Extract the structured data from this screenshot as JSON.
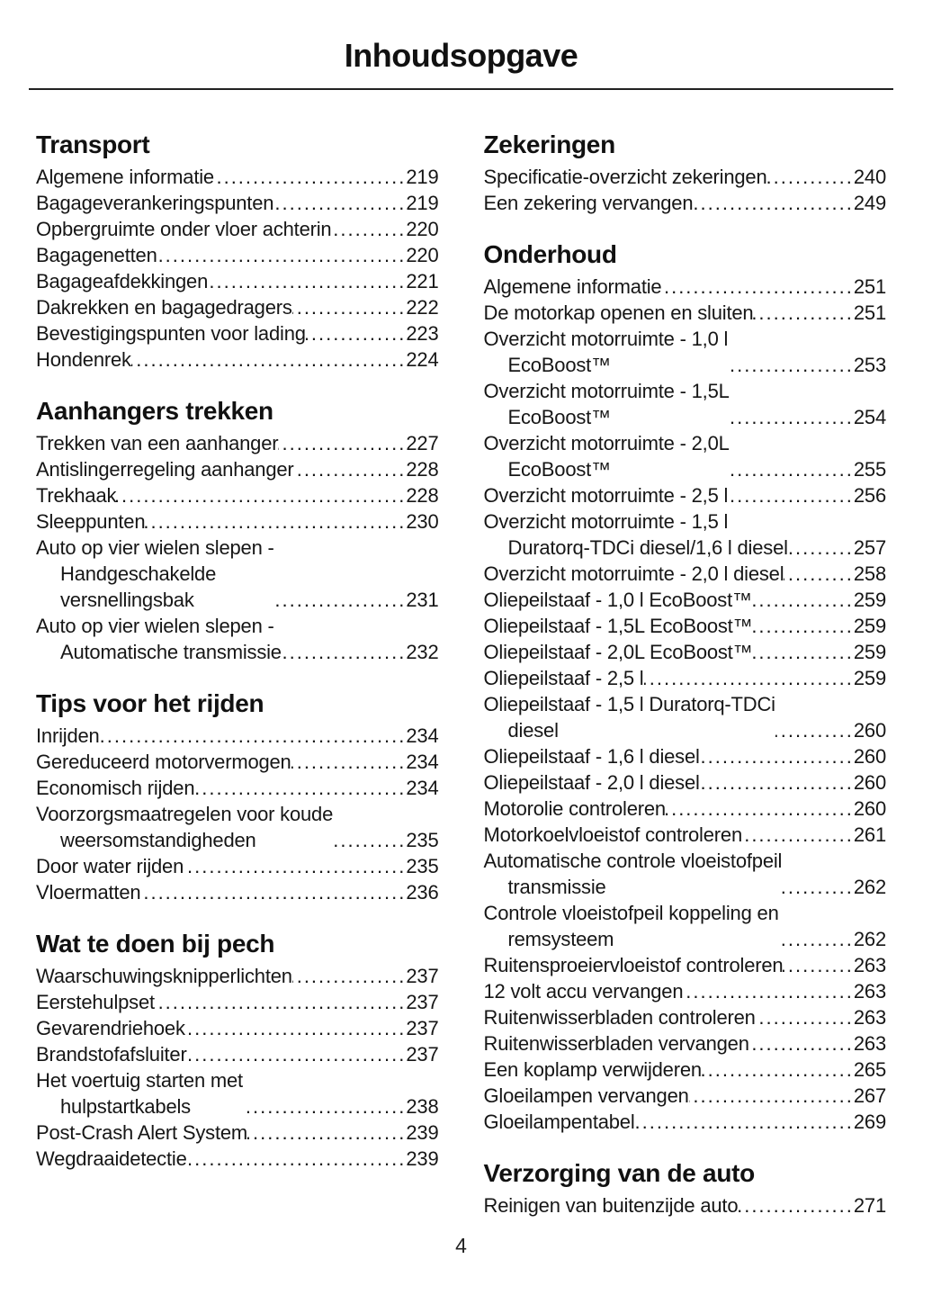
{
  "page": {
    "title": "Inhoudsopgave",
    "page_number": "4"
  },
  "toc": {
    "columns": [
      {
        "sections": [
          {
            "heading": "Transport",
            "entries": [
              {
                "text": "Algemene informatie",
                "page": "219"
              },
              {
                "text": "Bagageverankeringspunten",
                "page": "219"
              },
              {
                "text": "Opbergruimte onder vloer achterin",
                "page": "220"
              },
              {
                "text": "Bagagenetten",
                "page": "220"
              },
              {
                "text": "Bagageafdekkingen",
                "page": "221"
              },
              {
                "text": "Dakrekken en bagagedragers",
                "page": "222"
              },
              {
                "text": "Bevestigingspunten voor lading",
                "page": "223"
              },
              {
                "text": "Hondenrek",
                "page": "224"
              }
            ]
          },
          {
            "heading": "Aanhangers trekken",
            "entries": [
              {
                "text": "Trekken van een aanhanger",
                "page": "227"
              },
              {
                "text": "Antislingerregeling aanhanger",
                "page": "228"
              },
              {
                "text": "Trekhaak",
                "page": "228"
              },
              {
                "text": "Sleeppunten",
                "page": "230"
              },
              {
                "text": "Auto op vier wielen slepen -\nHandgeschakelde\nversnellingsbak",
                "page": "231"
              },
              {
                "text": "Auto op vier wielen slepen -\nAutomatische transmissie",
                "page": "232"
              }
            ]
          },
          {
            "heading": "Tips voor het rijden",
            "entries": [
              {
                "text": "Inrijden",
                "page": "234"
              },
              {
                "text": "Gereduceerd motorvermogen",
                "page": "234"
              },
              {
                "text": "Economisch rijden",
                "page": "234"
              },
              {
                "text": "Voorzorgsmaatregelen voor koude\nweersomstandigheden",
                "page": "235"
              },
              {
                "text": "Door water rijden",
                "page": "235"
              },
              {
                "text": "Vloermatten",
                "page": "236"
              }
            ]
          },
          {
            "heading": "Wat te doen bij pech",
            "entries": [
              {
                "text": "Waarschuwingsknipperlichten",
                "page": "237"
              },
              {
                "text": "Eerstehulpset",
                "page": "237"
              },
              {
                "text": "Gevarendriehoek",
                "page": "237"
              },
              {
                "text": "Brandstofafsluiter",
                "page": "237"
              },
              {
                "text": "Het voertuig starten met\nhulpstartkabels",
                "page": "238"
              },
              {
                "text": "Post-Crash Alert System",
                "page": "239"
              },
              {
                "text": "Wegdraaidetectie",
                "page": "239"
              }
            ]
          }
        ]
      },
      {
        "sections": [
          {
            "heading": "Zekeringen",
            "entries": [
              {
                "text": "Specificatie-overzicht zekeringen",
                "page": "240"
              },
              {
                "text": "Een zekering vervangen",
                "page": "249"
              }
            ]
          },
          {
            "heading": "Onderhoud",
            "entries": [
              {
                "text": "Algemene informatie",
                "page": "251"
              },
              {
                "text": "De motorkap openen en sluiten",
                "page": "251"
              },
              {
                "text": "Overzicht motorruimte - 1,0 l\nEcoBoost™",
                "page": "253"
              },
              {
                "text": "Overzicht motorruimte - 1,5L\nEcoBoost™",
                "page": "254"
              },
              {
                "text": "Overzicht motorruimte - 2,0L\nEcoBoost™",
                "page": "255"
              },
              {
                "text": "Overzicht motorruimte - 2,5 l",
                "page": "256"
              },
              {
                "text": "Overzicht motorruimte - 1,5 l\nDuratorq-TDCi diesel/1,6 l diesel",
                "page": "257"
              },
              {
                "text": "Overzicht motorruimte - 2,0 l diesel",
                "page": "258"
              },
              {
                "text": "Oliepeilstaaf - 1,0 l EcoBoost™",
                "page": "259"
              },
              {
                "text": "Oliepeilstaaf - 1,5L EcoBoost™",
                "page": "259"
              },
              {
                "text": "Oliepeilstaaf - 2,0L EcoBoost™",
                "page": "259"
              },
              {
                "text": "Oliepeilstaaf - 2,5 l",
                "page": "259"
              },
              {
                "text": "Oliepeilstaaf - 1,5 l Duratorq-TDCi\ndiesel",
                "page": "260"
              },
              {
                "text": "Oliepeilstaaf - 1,6 l diesel",
                "page": "260"
              },
              {
                "text": "Oliepeilstaaf - 2,0 l diesel",
                "page": "260"
              },
              {
                "text": "Motorolie controleren",
                "page": "260"
              },
              {
                "text": "Motorkoelvloeistof controleren",
                "page": "261"
              },
              {
                "text": "Automatische controle vloeistofpeil\ntransmissie",
                "page": "262"
              },
              {
                "text": "Controle vloeistofpeil koppeling en\nremsysteem",
                "page": "262"
              },
              {
                "text": "Ruitensproeiervloeistof controleren",
                "page": "263"
              },
              {
                "text": "12 volt accu vervangen",
                "page": "263"
              },
              {
                "text": "Ruitenwisserbladen controleren",
                "page": "263"
              },
              {
                "text": "Ruitenwisserbladen vervangen",
                "page": "263"
              },
              {
                "text": "Een koplamp verwijderen",
                "page": "265"
              },
              {
                "text": "Gloeilampen vervangen",
                "page": "267"
              },
              {
                "text": "Gloeilampentabel",
                "page": "269"
              }
            ]
          },
          {
            "heading": "Verzorging van de auto",
            "entries": [
              {
                "text": "Reinigen van buitenzijde auto",
                "page": "271"
              }
            ]
          }
        ]
      }
    ]
  }
}
